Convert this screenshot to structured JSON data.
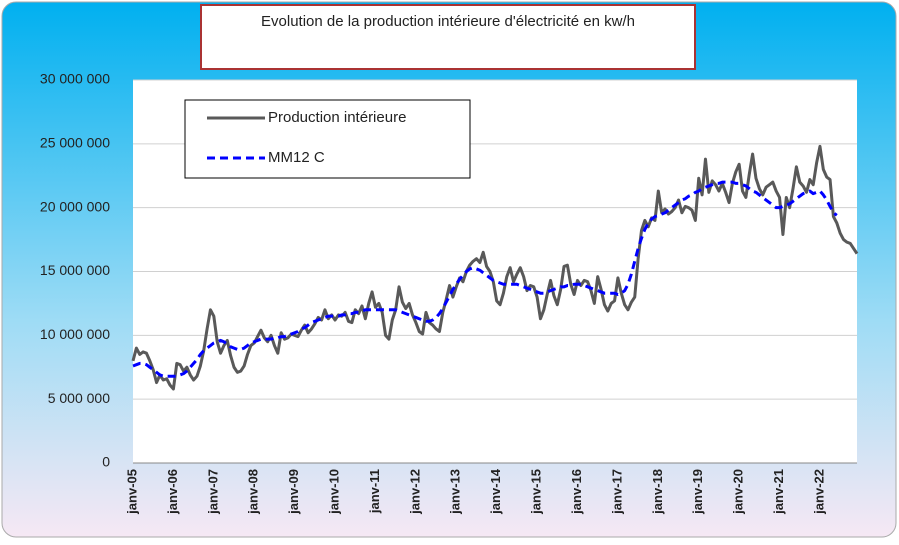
{
  "chart_data": {
    "type": "line",
    "title": "Evolution de la production intérieure d'électricité en kw/h",
    "categories": [
      "janv-05",
      null,
      null,
      null,
      null,
      null,
      null,
      null,
      null,
      null,
      null,
      null,
      "janv-06",
      null,
      null,
      null,
      null,
      null,
      null,
      null,
      null,
      null,
      null,
      null,
      "janv-07",
      null,
      null,
      null,
      null,
      null,
      null,
      null,
      null,
      null,
      null,
      null,
      "janv-08",
      null,
      null,
      null,
      null,
      null,
      null,
      null,
      null,
      null,
      null,
      null,
      "janv-09",
      null,
      null,
      null,
      null,
      null,
      null,
      null,
      null,
      null,
      null,
      null,
      "janv-10",
      null,
      null,
      null,
      null,
      null,
      null,
      null,
      null,
      null,
      null,
      null,
      "janv-11",
      null,
      null,
      null,
      null,
      null,
      null,
      null,
      null,
      null,
      null,
      null,
      "janv-12",
      null,
      null,
      null,
      null,
      null,
      null,
      null,
      null,
      null,
      null,
      null,
      "janv-13",
      null,
      null,
      null,
      null,
      null,
      null,
      null,
      null,
      null,
      null,
      null,
      "janv-14",
      null,
      null,
      null,
      null,
      null,
      null,
      null,
      null,
      null,
      null,
      null,
      "janv-15",
      null,
      null,
      null,
      null,
      null,
      null,
      null,
      null,
      null,
      null,
      null,
      "janv-16",
      null,
      null,
      null,
      null,
      null,
      null,
      null,
      null,
      null,
      null,
      null,
      "janv-17",
      null,
      null,
      null,
      null,
      null,
      null,
      null,
      null,
      null,
      null,
      null,
      "janv-18",
      null,
      null,
      null,
      null,
      null,
      null,
      null,
      null,
      null,
      null,
      null,
      "janv-19",
      null,
      null,
      null,
      null,
      null,
      null,
      null,
      null,
      null,
      null,
      null,
      "janv-20",
      null,
      null,
      null,
      null,
      null,
      null,
      null,
      null,
      null,
      null,
      null,
      "janv-21",
      null,
      null,
      null,
      null,
      null,
      null,
      null,
      null,
      null,
      null,
      null,
      "janv-22",
      null,
      null,
      null,
      null,
      null,
      null,
      null,
      null,
      null,
      null,
      null
    ],
    "series": [
      {
        "name": "Production intérieure",
        "color": "#595959",
        "values": [
          8000000,
          9000000,
          8500000,
          8700000,
          8600000,
          8000000,
          7300000,
          6300000,
          6900000,
          6500000,
          6600000,
          6100000,
          5800000,
          7800000,
          7700000,
          7200000,
          7500000,
          6900000,
          6500000,
          6800000,
          7600000,
          8800000,
          10500000,
          12000000,
          11500000,
          9500000,
          8600000,
          9200000,
          9600000,
          8400000,
          7500000,
          7100000,
          7200000,
          7600000,
          8500000,
          9200000,
          9400000,
          9900000,
          10400000,
          9800000,
          9500000,
          10000000,
          9200000,
          8600000,
          10200000,
          9700000,
          9800000,
          10100000,
          10000000,
          9900000,
          10400000,
          10800000,
          10200000,
          10500000,
          10900000,
          11400000,
          11200000,
          12000000,
          11300000,
          11600000,
          11200000,
          11600000,
          11500000,
          11800000,
          11100000,
          11000000,
          12000000,
          11700000,
          12300000,
          11300000,
          12500000,
          13400000,
          12200000,
          12500000,
          11800000,
          10000000,
          9700000,
          11200000,
          12000000,
          13800000,
          12600000,
          12100000,
          12500000,
          11600000,
          11000000,
          10300000,
          10100000,
          11800000,
          11000000,
          10800000,
          10500000,
          10300000,
          11800000,
          12800000,
          13900000,
          13000000,
          13800000,
          14500000,
          14200000,
          15000000,
          15500000,
          15800000,
          16000000,
          15700000,
          16500000,
          15400000,
          15000000,
          14200000,
          12700000,
          12400000,
          13300000,
          14600000,
          15300000,
          14200000,
          14800000,
          15300000,
          14600000,
          13500000,
          13900000,
          13800000,
          13000000,
          11300000,
          12000000,
          13200000,
          14300000,
          13100000,
          12400000,
          13600000,
          15400000,
          15500000,
          14000000,
          13200000,
          14300000,
          13900000,
          14300000,
          14200000,
          13500000,
          12500000,
          14600000,
          13600000,
          12400000,
          11900000,
          12500000,
          12700000,
          14500000,
          13300000,
          12400000,
          12000000,
          12600000,
          13000000,
          16000000,
          18200000,
          19000000,
          18500000,
          19200000,
          19000000,
          21300000,
          19600000,
          19900000,
          19500000,
          19700000,
          20000000,
          20600000,
          19600000,
          20100000,
          20000000,
          19800000,
          19000000,
          22300000,
          21000000,
          23800000,
          21200000,
          22100000,
          21800000,
          21300000,
          21900000,
          21200000,
          20400000,
          21900000,
          22800000,
          23400000,
          21300000,
          20800000,
          22600000,
          24200000,
          22300000,
          21500000,
          21000000,
          21600000,
          21800000,
          22000000,
          21300000,
          20800000,
          17900000,
          20800000,
          20000000,
          21500000,
          23200000,
          22000000,
          21700000,
          21200000,
          22200000,
          21800000,
          23500000,
          24800000,
          23000000,
          22400000,
          22200000,
          19300000,
          18800000,
          18000000,
          17500000,
          17300000,
          17200000,
          16800000,
          16400000
        ]
      },
      {
        "name": "MM12 C",
        "color": "#0000ff",
        "values": [
          7600000,
          7700000,
          7800000,
          7800000,
          7700000,
          7500000,
          7300000,
          7100000,
          6900000,
          6800000,
          6800000,
          6800000,
          6800000,
          6800000,
          6900000,
          7000000,
          7200000,
          7500000,
          7800000,
          8100000,
          8500000,
          8800000,
          9000000,
          9200000,
          9400000,
          9500000,
          9600000,
          9500000,
          9300000,
          9100000,
          9000000,
          8900000,
          8900000,
          9000000,
          9200000,
          9400000,
          9500000,
          9600000,
          9700000,
          9700000,
          9700000,
          9700000,
          9800000,
          9800000,
          9900000,
          9900000,
          10000000,
          10100000,
          10200000,
          10300000,
          10500000,
          10600000,
          10800000,
          11000000,
          11100000,
          11200000,
          11300000,
          11400000,
          11500000,
          11500000,
          11500000,
          11500000,
          11600000,
          11600000,
          11700000,
          11700000,
          11800000,
          11800000,
          11900000,
          12000000,
          12000000,
          12000000,
          12000000,
          12000000,
          12000000,
          12000000,
          12000000,
          12000000,
          12000000,
          11900000,
          11800000,
          11700000,
          11600000,
          11500000,
          11400000,
          11300000,
          11200000,
          11100000,
          11100000,
          11200000,
          11400000,
          11700000,
          12100000,
          12600000,
          13100000,
          13600000,
          14000000,
          14400000,
          14700000,
          15000000,
          15200000,
          15300000,
          15200000,
          15100000,
          14900000,
          14700000,
          14500000,
          14300000,
          14200000,
          14100000,
          14000000,
          14000000,
          14000000,
          14000000,
          14000000,
          13900000,
          13800000,
          13700000,
          13600000,
          13500000,
          13400000,
          13300000,
          13300000,
          13400000,
          13500000,
          13600000,
          13700000,
          13800000,
          13800000,
          13900000,
          13900000,
          14000000,
          14000000,
          14000000,
          13900000,
          13800000,
          13700000,
          13600000,
          13500000,
          13400000,
          13300000,
          13300000,
          13300000,
          13300000,
          13200000,
          13300000,
          13500000,
          14000000,
          14800000,
          15800000,
          16800000,
          17600000,
          18300000,
          18800000,
          19100000,
          19300000,
          19400000,
          19500000,
          19600000,
          19800000,
          20000000,
          20200000,
          20400000,
          20600000,
          20700000,
          20900000,
          21000000,
          21200000,
          21300000,
          21500000,
          21600000,
          21700000,
          21800000,
          21900000,
          21900000,
          22000000,
          22000000,
          22000000,
          22000000,
          21900000,
          21900000,
          21800000,
          21700000,
          21500000,
          21300000,
          21200000,
          21000000,
          20800000,
          20600000,
          20400000,
          20200000,
          20000000,
          20000000,
          20100000,
          20200000,
          20300000,
          20500000,
          20700000,
          20900000,
          21100000,
          21200000,
          21300000,
          21100000,
          21200000,
          21300000,
          21000000,
          20600000,
          20100000,
          19600000,
          19400000,
          null,
          null,
          null,
          null,
          null,
          null
        ]
      }
    ],
    "ylim": [
      0,
      30000000
    ],
    "yticks": [
      0,
      {
        "value": 5000000,
        "label": "5 000 000"
      },
      {
        "value": 10000000,
        "label": "10 000 000"
      },
      {
        "value": 15000000,
        "label": "15 000 000"
      },
      {
        "value": 20000000,
        "label": "20 000 000"
      },
      {
        "value": 25000000,
        "label": "25 000 000"
      },
      {
        "value": 30000000,
        "label": "30 000 000"
      }
    ],
    "grid": true
  }
}
